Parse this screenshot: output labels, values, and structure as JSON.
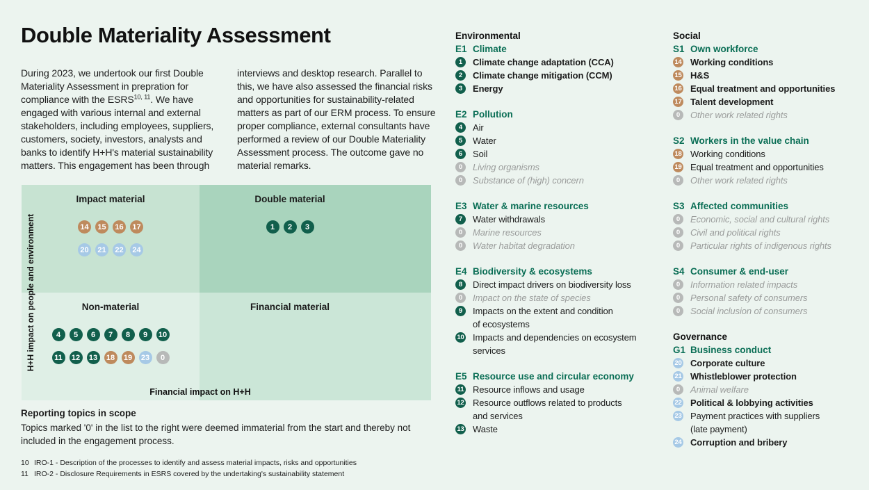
{
  "title": "Double Materiality Assessment",
  "intro": {
    "col1_before": "During 2023, we undertook our first Double\nMateriality Assessment in prepration for\ncompliance with the ESRS",
    "col1_sup": "10, 11",
    "col1_after": ". We have\nengaged with various internal and external\nstakeholders, including employees, suppliers,\ncustomers, society, investors, analysts and\nbanks to identify H+H's material sustainability\nmatters. This engagement has been through",
    "col2": "interviews and desktop research. Parallel to\nthis, we have also assessed the financial risks\nand opportunities for sustainability-related\nmatters as part of our ERM process. To ensure\nproper compliance, external consultants have\nperformed a review of our Double Materiality\nAssessment process. The outcome gave no\nmaterial remarks."
  },
  "matrix": {
    "y_axis_label": "H+H impact on people and environment",
    "x_axis_label": "Financial impact on H+H",
    "quadrants": [
      {
        "label": "Impact material",
        "rows": [
          [
            {
              "n": "14",
              "c": "social"
            },
            {
              "n": "15",
              "c": "social"
            },
            {
              "n": "16",
              "c": "social"
            },
            {
              "n": "17",
              "c": "social"
            }
          ],
          [
            {
              "n": "20",
              "c": "gov"
            },
            {
              "n": "21",
              "c": "gov"
            },
            {
              "n": "22",
              "c": "gov"
            },
            {
              "n": "24",
              "c": "gov"
            }
          ]
        ]
      },
      {
        "label": "Double material",
        "rows": [
          [
            {
              "n": "1",
              "c": "env"
            },
            {
              "n": "2",
              "c": "env"
            },
            {
              "n": "3",
              "c": "env"
            }
          ]
        ]
      },
      {
        "label": "Non-material",
        "rows": [
          [
            {
              "n": "4",
              "c": "env"
            },
            {
              "n": "5",
              "c": "env"
            },
            {
              "n": "6",
              "c": "env"
            },
            {
              "n": "7",
              "c": "env"
            },
            {
              "n": "8",
              "c": "env"
            },
            {
              "n": "9",
              "c": "env"
            },
            {
              "n": "10",
              "c": "env"
            }
          ],
          [
            {
              "n": "11",
              "c": "env"
            },
            {
              "n": "12",
              "c": "env"
            },
            {
              "n": "13",
              "c": "env"
            },
            {
              "n": "18",
              "c": "social"
            },
            {
              "n": "19",
              "c": "social"
            },
            {
              "n": "23",
              "c": "gov"
            },
            {
              "n": "0",
              "c": "zero"
            }
          ]
        ]
      },
      {
        "label": "Financial material",
        "rows": []
      }
    ]
  },
  "reporting": {
    "heading": "Reporting topics in scope",
    "text": "Topics marked '0' in the list to the right were deemed immaterial from the start and thereby not\nincluded in the engagement process."
  },
  "footnotes": [
    {
      "num": "10",
      "text": "IRO-1 - Description of the processes to identify and assess material impacts, risks and opportunities"
    },
    {
      "num": "11",
      "text": "IRO-2 - Disclosure Requirements in ESRS covered by the undertaking's sustainability statement"
    }
  ],
  "columns": [
    {
      "sections": [
        {
          "header": "Environmental",
          "groups": [
            {
              "code": "E1",
              "title": "Climate",
              "items": [
                {
                  "num": "1",
                  "c": "env",
                  "emph": "bold",
                  "text": "Climate change adaptation (CCA)"
                },
                {
                  "num": "2",
                  "c": "env",
                  "emph": "bold",
                  "text": "Climate change mitigation (CCM)"
                },
                {
                  "num": "3",
                  "c": "env",
                  "emph": "bold",
                  "text": "Energy"
                }
              ]
            },
            {
              "code": "E2",
              "title": "Pollution",
              "items": [
                {
                  "num": "4",
                  "c": "env",
                  "emph": "regular",
                  "text": "Air"
                },
                {
                  "num": "5",
                  "c": "env",
                  "emph": "regular",
                  "text": "Water"
                },
                {
                  "num": "6",
                  "c": "env",
                  "emph": "regular",
                  "text": "Soil"
                },
                {
                  "num": "0",
                  "c": "zero",
                  "emph": "muted",
                  "text": "Living organisms"
                },
                {
                  "num": "0",
                  "c": "zero",
                  "emph": "muted",
                  "text": "Substance of (high) concern"
                }
              ]
            },
            {
              "code": "E3",
              "title": "Water & marine resources",
              "items": [
                {
                  "num": "7",
                  "c": "env",
                  "emph": "regular",
                  "text": "Water withdrawals"
                },
                {
                  "num": "0",
                  "c": "zero",
                  "emph": "muted",
                  "text": "Marine resources"
                },
                {
                  "num": "0",
                  "c": "zero",
                  "emph": "muted",
                  "text": "Water habitat degradation"
                }
              ]
            },
            {
              "code": "E4",
              "title": "Biodiversity & ecosystems",
              "items": [
                {
                  "num": "8",
                  "c": "env",
                  "emph": "regular",
                  "text": "Direct impact drivers on biodiversity loss"
                },
                {
                  "num": "0",
                  "c": "zero",
                  "emph": "muted",
                  "text": "Impact on the state of species"
                },
                {
                  "num": "9",
                  "c": "env",
                  "emph": "regular",
                  "text": "Impacts on the extent and condition\nof ecosystems"
                },
                {
                  "num": "10",
                  "c": "env",
                  "emph": "regular",
                  "text": "Impacts and dependencies on ecosystem\nservices"
                }
              ]
            },
            {
              "code": "E5",
              "title": "Resource use and circular economy",
              "items": [
                {
                  "num": "11",
                  "c": "env",
                  "emph": "regular",
                  "text": "Resource inflows and usage"
                },
                {
                  "num": "12",
                  "c": "env",
                  "emph": "regular",
                  "text": "Resource outflows related to products\nand services"
                },
                {
                  "num": "13",
                  "c": "env",
                  "emph": "regular",
                  "text": "Waste"
                }
              ]
            }
          ]
        }
      ]
    },
    {
      "sections": [
        {
          "header": "Social",
          "groups": [
            {
              "code": "S1",
              "title": "Own workforce",
              "items": [
                {
                  "num": "14",
                  "c": "social",
                  "emph": "bold",
                  "text": "Working conditions"
                },
                {
                  "num": "15",
                  "c": "social",
                  "emph": "bold",
                  "text": "H&S"
                },
                {
                  "num": "16",
                  "c": "social",
                  "emph": "bold",
                  "text": "Equal treatment and opportunities"
                },
                {
                  "num": "17",
                  "c": "social",
                  "emph": "bold",
                  "text": "Talent development"
                },
                {
                  "num": "0",
                  "c": "zero",
                  "emph": "muted",
                  "text": "Other work related rights"
                }
              ]
            },
            {
              "code": "S2",
              "title": "Workers in the value chain",
              "items": [
                {
                  "num": "18",
                  "c": "social",
                  "emph": "regular",
                  "text": "Working conditions"
                },
                {
                  "num": "19",
                  "c": "social",
                  "emph": "regular",
                  "text": "Equal treatment and opportunities"
                },
                {
                  "num": "0",
                  "c": "zero",
                  "emph": "muted",
                  "text": "Other work related rights"
                }
              ]
            },
            {
              "code": "S3",
              "title": "Affected communities",
              "items": [
                {
                  "num": "0",
                  "c": "zero",
                  "emph": "muted",
                  "text": "Economic, social and cultural rights"
                },
                {
                  "num": "0",
                  "c": "zero",
                  "emph": "muted",
                  "text": "Civil and political rights"
                },
                {
                  "num": "0",
                  "c": "zero",
                  "emph": "muted",
                  "text": "Particular rights of indigenous rights"
                }
              ]
            },
            {
              "code": "S4",
              "title": "Consumer & end-user",
              "items": [
                {
                  "num": "0",
                  "c": "zero",
                  "emph": "muted",
                  "text": "Information related impacts"
                },
                {
                  "num": "0",
                  "c": "zero",
                  "emph": "muted",
                  "text": "Personal safety of consumers"
                },
                {
                  "num": "0",
                  "c": "zero",
                  "emph": "muted",
                  "text": "Social inclusion of consumers"
                }
              ]
            }
          ]
        },
        {
          "header": "Governance",
          "groups": [
            {
              "code": "G1",
              "title": "Business conduct",
              "items": [
                {
                  "num": "20",
                  "c": "gov",
                  "emph": "bold",
                  "text": "Corporate culture"
                },
                {
                  "num": "21",
                  "c": "gov",
                  "emph": "bold",
                  "text": "Whistleblower protection"
                },
                {
                  "num": "0",
                  "c": "zero",
                  "emph": "muted",
                  "text": "Animal welfare"
                },
                {
                  "num": "22",
                  "c": "gov",
                  "emph": "bold",
                  "text": "Political & lobbying activities"
                },
                {
                  "num": "23",
                  "c": "gov",
                  "emph": "regular",
                  "text": "Payment practices with suppliers\n(late payment)"
                },
                {
                  "num": "24",
                  "c": "gov",
                  "emph": "bold",
                  "text": "Corruption and bribery"
                }
              ]
            }
          ]
        }
      ]
    }
  ],
  "colors": {
    "page_bg": "#ECF4EF",
    "heading_green": "#0A6E55",
    "chip_environmental": "#115F4C",
    "chip_social": "#BE8A5D",
    "chip_governance": "#A6C9E6",
    "chip_zero": "#B7B9B8",
    "muted_text": "#9A9C9B",
    "quad_impact_material": "#C7E3D2",
    "quad_double_material": "#A9D4BD",
    "quad_non_material": "#DFEFE6",
    "quad_financial_material": "#CBE6D7"
  }
}
